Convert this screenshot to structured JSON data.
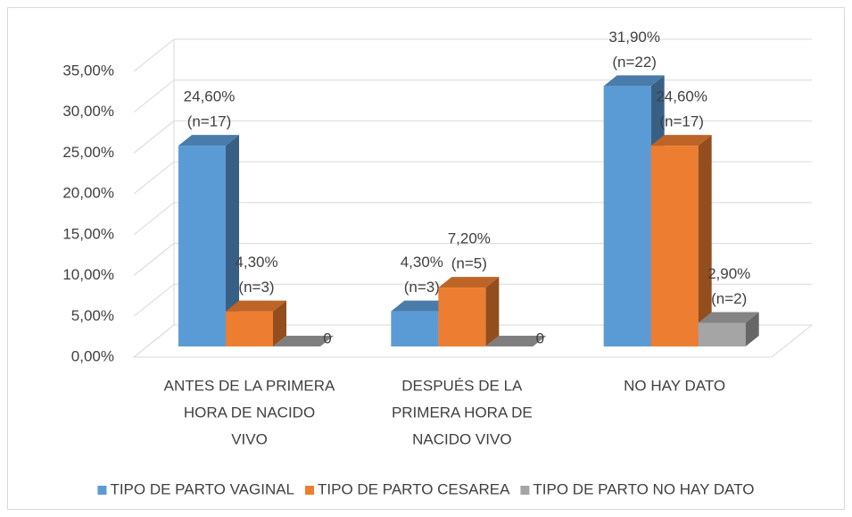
{
  "chart_data": {
    "type": "bar3d",
    "categories": [
      [
        "ANTES DE LA PRIMERA",
        "HORA DE NACIDO",
        "VIVO"
      ],
      [
        "DESPUÉS DE LA",
        "PRIMERA HORA DE",
        "NACIDO VIVO"
      ],
      [
        "NO HAY DATO"
      ]
    ],
    "series": [
      {
        "name": "TIPO DE PARTO VAGINAL",
        "color": "#5b9bd5",
        "values": [
          24.6,
          4.3,
          31.9
        ],
        "value_labels": [
          [
            "24,60%",
            "(n=17)"
          ],
          [
            "4,30%",
            "(n=3)"
          ],
          [
            "31,90%",
            "(n=22)"
          ]
        ]
      },
      {
        "name": "TIPO DE PARTO CESAREA",
        "color": "#ed7d31",
        "values": [
          4.3,
          7.2,
          24.6
        ],
        "value_labels": [
          [
            "4,30%",
            "(n=3)"
          ],
          [
            "7,20%",
            "(n=5)"
          ],
          [
            "24,60%",
            "(n=17)"
          ]
        ]
      },
      {
        "name": "TIPO DE PARTO NO HAY DATO",
        "color": "#a5a5a5",
        "values": [
          0,
          0,
          2.9
        ],
        "value_labels": [
          [
            "0"
          ],
          [
            "0"
          ],
          [
            "2,90%",
            "(n=2)"
          ]
        ]
      }
    ],
    "ylim": [
      0,
      35
    ],
    "yticks": [
      {
        "value": 0,
        "label": "0,00%"
      },
      {
        "value": 5,
        "label": "5,00%"
      },
      {
        "value": 10,
        "label": "10,00%"
      },
      {
        "value": 15,
        "label": "15,00%"
      },
      {
        "value": 20,
        "label": "20,00%"
      },
      {
        "value": 25,
        "label": "25,00%"
      },
      {
        "value": 30,
        "label": "30,00%"
      },
      {
        "value": 35,
        "label": "35,00%"
      }
    ],
    "grid": true,
    "legend": "bottom"
  }
}
